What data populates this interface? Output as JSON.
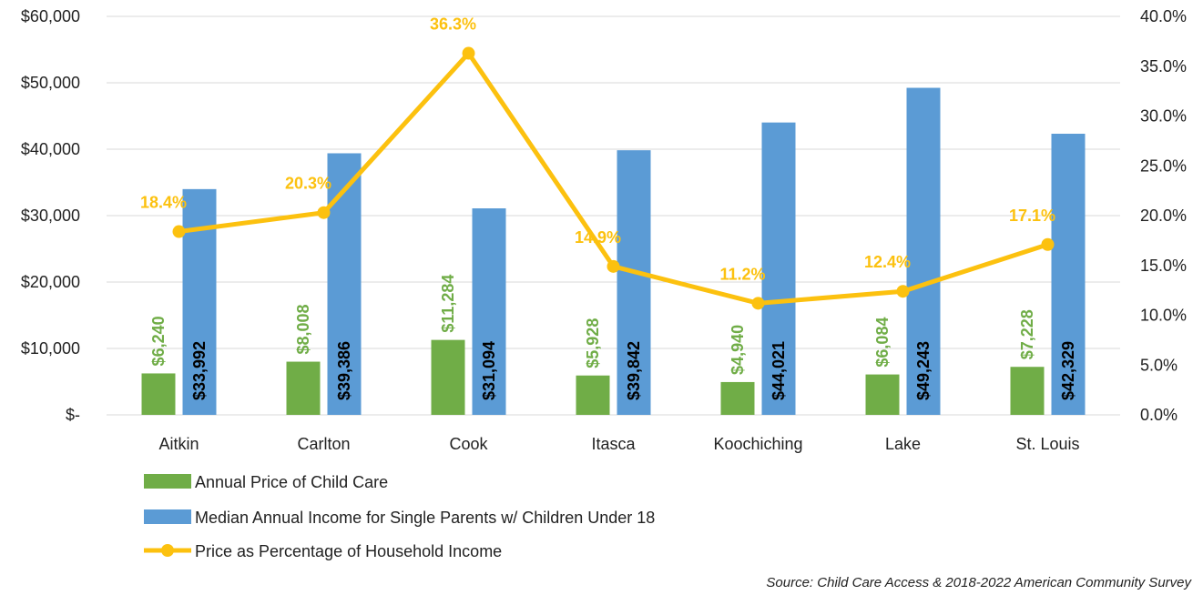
{
  "chart_data": {
    "type": "bar",
    "categories": [
      "Aitkin",
      "Carlton",
      "Cook",
      "Itasca",
      "Koochiching",
      "Lake",
      "St. Louis"
    ],
    "series": [
      {
        "name": "Annual Price of Child Care",
        "kind": "bar",
        "axis": "left",
        "color": "#70ad47",
        "values": [
          6240,
          8008,
          11284,
          5928,
          4940,
          6084,
          7228
        ],
        "labels": [
          "$6,240",
          "$8,008",
          "$11,284",
          "$5,928",
          "$4,940",
          "$6,084",
          "$7,228"
        ]
      },
      {
        "name": "Median Annual Income for Single Parents w/ Children Under 18",
        "kind": "bar",
        "axis": "left",
        "color": "#5b9bd5",
        "values": [
          33992,
          39386,
          31094,
          39842,
          44021,
          49243,
          42329
        ],
        "labels": [
          "$33,992",
          "$39,386",
          "$31,094",
          "$39,842",
          "$44,021",
          "$49,243",
          "$42,329"
        ]
      },
      {
        "name": "Price as Percentage of Household Income",
        "kind": "line",
        "axis": "right",
        "color": "#fcc10f",
        "values": [
          18.4,
          20.3,
          36.3,
          14.9,
          11.2,
          12.4,
          17.1
        ],
        "labels": [
          "18.4%",
          "20.3%",
          "36.3%",
          "14.9%",
          "11.2%",
          "12.4%",
          "17.1%"
        ]
      }
    ],
    "left_axis": {
      "ylim": [
        0,
        60000
      ],
      "ticks": [
        0,
        10000,
        20000,
        30000,
        40000,
        50000,
        60000
      ],
      "tick_labels": [
        "$-",
        "$10,000",
        "$20,000",
        "$30,000",
        "$40,000",
        "$50,000",
        "$60,000"
      ]
    },
    "right_axis": {
      "ylim": [
        0,
        40
      ],
      "ticks": [
        0,
        5,
        10,
        15,
        20,
        25,
        30,
        35,
        40
      ],
      "tick_labels": [
        "0.0%",
        "5.0%",
        "10.0%",
        "15.0%",
        "20.0%",
        "25.0%",
        "30.0%",
        "35.0%",
        "40.0%"
      ]
    },
    "grid": true,
    "legend_position": "bottom-left",
    "source": "Source: Child Care Access & 2018-2022 American Community Survey"
  }
}
